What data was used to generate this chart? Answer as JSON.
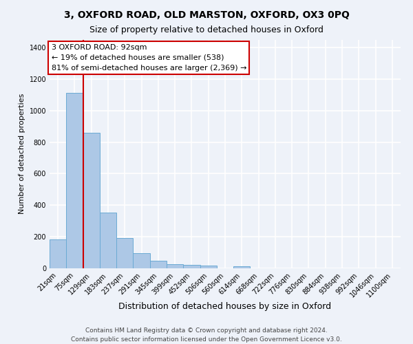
{
  "title_line1": "3, OXFORD ROAD, OLD MARSTON, OXFORD, OX3 0PQ",
  "title_line2": "Size of property relative to detached houses in Oxford",
  "xlabel": "Distribution of detached houses by size in Oxford",
  "ylabel": "Number of detached properties",
  "categories": [
    "21sqm",
    "75sqm",
    "129sqm",
    "183sqm",
    "237sqm",
    "291sqm",
    "345sqm",
    "399sqm",
    "452sqm",
    "506sqm",
    "560sqm",
    "614sqm",
    "668sqm",
    "722sqm",
    "776sqm",
    "830sqm",
    "884sqm",
    "938sqm",
    "992sqm",
    "1046sqm",
    "1100sqm"
  ],
  "values": [
    185,
    1110,
    860,
    355,
    190,
    95,
    50,
    25,
    20,
    18,
    0,
    15,
    0,
    0,
    0,
    0,
    0,
    0,
    0,
    0,
    0
  ],
  "bar_color": "#adc8e6",
  "bar_edge_color": "#6aaad4",
  "annotation_text_line1": "3 OXFORD ROAD: 92sqm",
  "annotation_text_line2": "← 19% of detached houses are smaller (538)",
  "annotation_text_line3": "81% of semi-detached houses are larger (2,369) →",
  "annotation_box_facecolor": "#ffffff",
  "annotation_box_edgecolor": "#cc0000",
  "vline_color": "#cc0000",
  "vline_x": 1.5,
  "ylim": [
    0,
    1450
  ],
  "yticks": [
    0,
    200,
    400,
    600,
    800,
    1000,
    1200,
    1400
  ],
  "footer_line1": "Contains HM Land Registry data © Crown copyright and database right 2024.",
  "footer_line2": "Contains public sector information licensed under the Open Government Licence v3.0.",
  "background_color": "#eef2f9",
  "grid_color": "#ffffff",
  "title1_fontsize": 10,
  "title2_fontsize": 9,
  "ylabel_fontsize": 8,
  "xlabel_fontsize": 9,
  "tick_fontsize": 7,
  "footer_fontsize": 6.5,
  "ann_fontsize": 8
}
